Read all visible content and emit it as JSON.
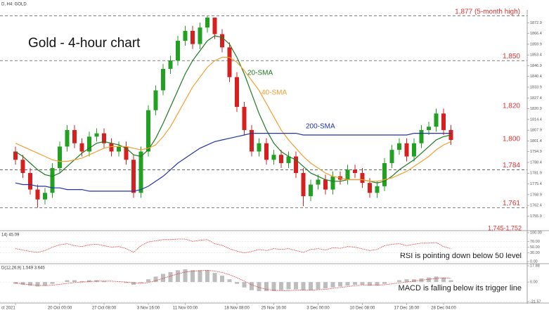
{
  "chart_data": [
    {
      "type": "candlestick",
      "header": "D, H4:  GOLD",
      "title": "Gold - 4-hour chart",
      "categories": [
        "ct 2021",
        null,
        null,
        null,
        null,
        null,
        "20 Oct 00:00",
        null,
        null,
        null,
        null,
        null,
        "27 Oct 08:00",
        null,
        null,
        null,
        null,
        null,
        "3 Nov 16:00",
        null,
        null,
        null,
        null,
        "11 Nov 00:00",
        null,
        null,
        null,
        null,
        null,
        null,
        "18 Nov 08:00",
        null,
        null,
        null,
        null,
        "25 Nov 16:00",
        null,
        null,
        null,
        null,
        null,
        "3 Dec 00:00",
        null,
        null,
        null,
        null,
        null,
        "10 Dec 08:00",
        null,
        null,
        null,
        null,
        null,
        "17 Dec 16:00",
        null,
        null,
        null,
        null,
        "28 Dec 04:00",
        null
      ],
      "open": [
        1795,
        1790,
        1782,
        1772,
        1766,
        1770,
        1785,
        1798,
        1808,
        1800,
        1795,
        1804,
        1806,
        1800,
        1795,
        1798,
        1790,
        1770,
        1795,
        1820,
        1832,
        1845,
        1850,
        1862,
        1868,
        1860,
        1870,
        1876,
        1866,
        1858,
        1840,
        1822,
        1808,
        1795,
        1800,
        1790,
        1793,
        1788,
        1792,
        1782,
        1768,
        1775,
        1778,
        1772,
        1780,
        1778,
        1784,
        1782,
        1776,
        1770,
        1774,
        1788,
        1796,
        1800,
        1792,
        1800,
        1808,
        1810,
        1818,
        1808
      ],
      "high": [
        1798,
        1793,
        1785,
        1775,
        1773,
        1788,
        1801,
        1811,
        1811,
        1803,
        1807,
        1809,
        1809,
        1803,
        1801,
        1801,
        1793,
        1798,
        1823,
        1835,
        1848,
        1853,
        1865,
        1871,
        1871,
        1873,
        1877,
        1876,
        1869,
        1861,
        1843,
        1825,
        1811,
        1803,
        1803,
        1796,
        1796,
        1795,
        1795,
        1785,
        1778,
        1781,
        1781,
        1783,
        1783,
        1787,
        1787,
        1785,
        1779,
        1777,
        1791,
        1799,
        1803,
        1803,
        1803,
        1811,
        1813,
        1821,
        1821,
        1811
      ],
      "low": [
        1787,
        1779,
        1769,
        1761,
        1763,
        1767,
        1782,
        1795,
        1797,
        1792,
        1792,
        1801,
        1797,
        1792,
        1792,
        1787,
        1767,
        1767,
        1792,
        1817,
        1829,
        1842,
        1847,
        1859,
        1857,
        1857,
        1867,
        1863,
        1855,
        1837,
        1819,
        1805,
        1792,
        1792,
        1787,
        1787,
        1785,
        1785,
        1779,
        1762,
        1765,
        1772,
        1769,
        1769,
        1775,
        1775,
        1779,
        1773,
        1767,
        1767,
        1771,
        1785,
        1793,
        1789,
        1789,
        1797,
        1805,
        1807,
        1805,
        1799
      ],
      "close": [
        1790,
        1782,
        1772,
        1766,
        1770,
        1785,
        1798,
        1808,
        1800,
        1795,
        1804,
        1806,
        1800,
        1795,
        1798,
        1790,
        1770,
        1795,
        1820,
        1832,
        1845,
        1850,
        1862,
        1868,
        1860,
        1870,
        1876,
        1866,
        1858,
        1840,
        1822,
        1808,
        1795,
        1800,
        1790,
        1793,
        1788,
        1792,
        1782,
        1768,
        1775,
        1778,
        1772,
        1780,
        1778,
        1784,
        1782,
        1776,
        1770,
        1774,
        1788,
        1796,
        1800,
        1792,
        1800,
        1808,
        1810,
        1818,
        1808,
        1802
      ],
      "up_color": "#22a022",
      "down_color": "#d62020",
      "series": [
        {
          "name": "20-SMA",
          "color": "#1f7a1f",
          "values": [
            1795,
            1792,
            1788,
            1784,
            1781,
            1780,
            1782,
            1786,
            1790,
            1794,
            1797,
            1800,
            1801,
            1800,
            1799,
            1797,
            1793,
            1792,
            1796,
            1803,
            1812,
            1822,
            1832,
            1842,
            1850,
            1856,
            1862,
            1865,
            1864,
            1860,
            1852,
            1842,
            1830,
            1818,
            1808,
            1800,
            1795,
            1792,
            1790,
            1786,
            1782,
            1780,
            1778,
            1777,
            1777,
            1778,
            1778,
            1778,
            1777,
            1776,
            1777,
            1780,
            1784,
            1787,
            1790,
            1794,
            1798,
            1802,
            1804,
            1805
          ]
        },
        {
          "name": "40-SMA",
          "color": "#f0a030",
          "values": [
            1800,
            1798,
            1796,
            1794,
            1792,
            1790,
            1789,
            1789,
            1790,
            1791,
            1793,
            1795,
            1797,
            1798,
            1798,
            1798,
            1797,
            1796,
            1797,
            1799,
            1804,
            1810,
            1818,
            1826,
            1834,
            1840,
            1846,
            1850,
            1852,
            1852,
            1849,
            1844,
            1838,
            1832,
            1824,
            1816,
            1808,
            1802,
            1797,
            1792,
            1788,
            1785,
            1782,
            1780,
            1779,
            1778,
            1778,
            1778,
            1777,
            1777,
            1778,
            1779,
            1781,
            1783,
            1786,
            1789,
            1792,
            1796,
            1799,
            1801
          ]
        },
        {
          "name": "200-SMA",
          "color": "#2233aa",
          "values": [
            1776,
            1775,
            1775,
            1774,
            1774,
            1773,
            1773,
            1772,
            1772,
            1772,
            1771,
            1771,
            1771,
            1771,
            1771,
            1771,
            1771,
            1772,
            1774,
            1777,
            1780,
            1784,
            1788,
            1791,
            1794,
            1797,
            1799,
            1801,
            1802,
            1803,
            1804,
            1805,
            1806,
            1806,
            1806,
            1806,
            1806,
            1806,
            1806,
            1805,
            1805,
            1805,
            1805,
            1805,
            1805,
            1805,
            1805,
            1805,
            1805,
            1805,
            1805,
            1805,
            1805,
            1805,
            1806,
            1806,
            1806,
            1806,
            1806,
            1806
          ]
        }
      ],
      "levels": [
        {
          "value": 1877,
          "label": "1,877 (5-month high)",
          "color": "#e03030",
          "line": true
        },
        {
          "value": 1850,
          "label": "1,850",
          "color": "#e03030",
          "line": true
        },
        {
          "value": 1820,
          "label": "1,820",
          "color": "#e03030",
          "line": false
        },
        {
          "value": 1800,
          "label": "1,800",
          "color": "#e03030",
          "line": false
        },
        {
          "value": 1784,
          "label": "1,784",
          "color": "#e03030",
          "line": true
        },
        {
          "value": 1761,
          "label": "1,761",
          "color": "#e03030",
          "line": true
        }
      ],
      "range_label": "1,745-1,752",
      "ylim": [
        1748,
        1879
      ],
      "yticks": [
        1872.9,
        1866.4,
        1859.9,
        1853.4,
        1846.9,
        1840.4,
        1833.9,
        1827.4,
        1820.9,
        1814.4,
        1807.9,
        1801.4,
        1794.9,
        1788.4,
        1781.9,
        1775.4,
        1768.9,
        1762.4,
        1755.9
      ]
    },
    {
      "type": "line",
      "header": "14) 45.09",
      "annotation": "RSI is pointing down below 50 level",
      "color": "#e03030",
      "values": [
        45,
        40,
        35,
        32,
        38,
        50,
        58,
        62,
        55,
        52,
        58,
        60,
        55,
        50,
        52,
        45,
        32,
        55,
        68,
        72,
        76,
        76,
        78,
        78,
        70,
        74,
        76,
        62,
        56,
        45,
        36,
        30,
        35,
        42,
        38,
        45,
        42,
        45,
        38,
        32,
        42,
        45,
        40,
        48,
        46,
        52,
        50,
        44,
        38,
        42,
        55,
        60,
        62,
        55,
        60,
        64,
        64,
        66,
        52,
        45
      ],
      "ylim": [
        0,
        100
      ],
      "yticks": [
        {
          "value": 100,
          "label": "100.00"
        },
        {
          "value": 70,
          "label": "70.00"
        },
        {
          "value": 50,
          "label": "50.00"
        },
        {
          "value": 30,
          "label": "30.00"
        },
        {
          "value": 0,
          "label": "0.00"
        }
      ]
    },
    {
      "type": "bar",
      "header": "D(12,26,9) 1.549 3.645",
      "annotation": "MACD is falling below its trigger line",
      "color": "#bdbdbd",
      "line_color": "#e03030",
      "values": [
        -2,
        -3,
        -4,
        -5,
        -4,
        -2,
        0,
        2,
        2,
        1,
        2,
        2,
        1,
        0,
        0,
        -1,
        -3,
        -1,
        3,
        6,
        9,
        11,
        13,
        14,
        13,
        13,
        13,
        10,
        7,
        3,
        -2,
        -6,
        -9,
        -10,
        -10,
        -10,
        -9,
        -8,
        -8,
        -9,
        -9,
        -8,
        -7,
        -6,
        -5,
        -4,
        -3,
        -3,
        -4,
        -4,
        -2,
        0,
        2,
        3,
        3,
        4,
        5,
        6,
        5,
        2
      ],
      "line_values": [
        -1,
        -2,
        -3,
        -3.5,
        -4,
        -3.5,
        -2.5,
        -1.5,
        -0.5,
        0,
        0.5,
        1,
        1,
        1,
        0.5,
        0,
        -1,
        -1.5,
        -0.5,
        1.5,
        4,
        6.5,
        9,
        11,
        12,
        12.5,
        13,
        12,
        10.5,
        8,
        5,
        1,
        -3,
        -6,
        -8,
        -9,
        -9.5,
        -9.5,
        -9,
        -9,
        -9,
        -8.5,
        -8,
        -7,
        -6,
        -5,
        -4,
        -3.5,
        -3.5,
        -3.5,
        -3,
        -2,
        -1,
        0,
        1,
        2,
        3,
        4,
        4.5,
        4
      ],
      "ylim": [
        -21.57,
        17.88
      ],
      "yticks": [
        17.88,
        {
          "value": 0,
          "label": "0.00"
        },
        -21.57
      ]
    }
  ]
}
